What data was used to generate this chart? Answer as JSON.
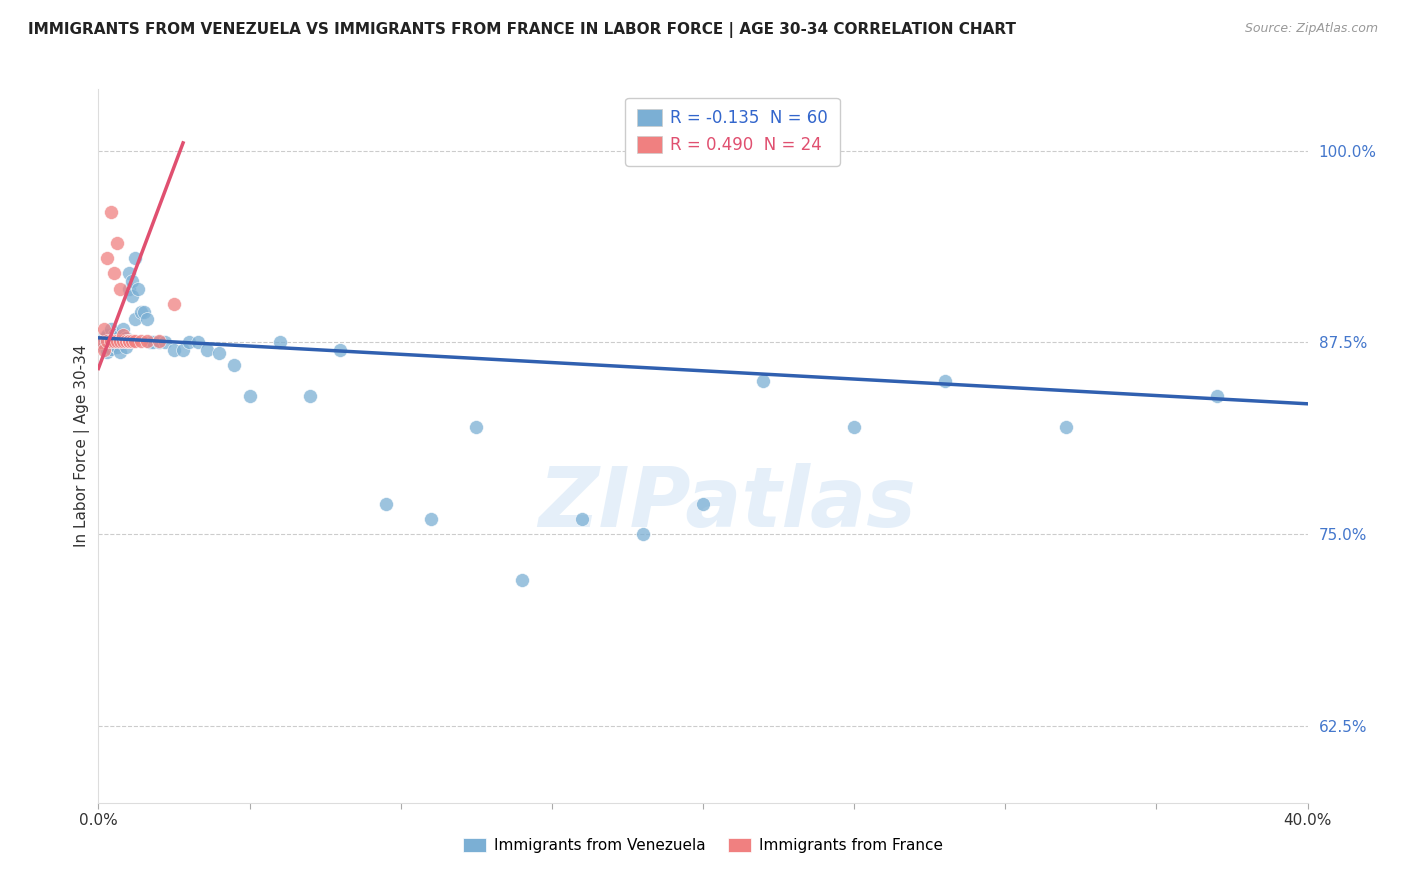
{
  "title": "IMMIGRANTS FROM VENEZUELA VS IMMIGRANTS FROM FRANCE IN LABOR FORCE | AGE 30-34 CORRELATION CHART",
  "source": "Source: ZipAtlas.com",
  "ylabel": "In Labor Force | Age 30-34",
  "yticks": [
    0.625,
    0.75,
    0.875,
    1.0
  ],
  "ytick_labels": [
    "62.5%",
    "75.0%",
    "87.5%",
    "100.0%"
  ],
  "xmin": 0.0,
  "xmax": 0.4,
  "ymin": 0.575,
  "ymax": 1.04,
  "legend_venezuela": "R = -0.135  N = 60",
  "legend_france": "R = 0.490  N = 24",
  "color_venezuela": "#7BAFD4",
  "color_france": "#F08080",
  "line_color_venezuela": "#3060B0",
  "line_color_france": "#E05070",
  "watermark": "ZIPatlas",
  "venezuela_x": [
    0.001,
    0.002,
    0.002,
    0.003,
    0.003,
    0.003,
    0.004,
    0.004,
    0.004,
    0.005,
    0.005,
    0.005,
    0.006,
    0.006,
    0.006,
    0.007,
    0.007,
    0.007,
    0.008,
    0.008,
    0.008,
    0.009,
    0.009,
    0.01,
    0.01,
    0.011,
    0.011,
    0.012,
    0.012,
    0.013,
    0.014,
    0.015,
    0.016,
    0.017,
    0.018,
    0.02,
    0.022,
    0.025,
    0.028,
    0.03,
    0.033,
    0.036,
    0.04,
    0.045,
    0.05,
    0.06,
    0.07,
    0.08,
    0.095,
    0.11,
    0.125,
    0.14,
    0.16,
    0.18,
    0.2,
    0.22,
    0.25,
    0.28,
    0.32,
    0.37
  ],
  "venezuela_y": [
    0.875,
    0.878,
    0.872,
    0.876,
    0.88,
    0.869,
    0.877,
    0.871,
    0.884,
    0.875,
    0.873,
    0.88,
    0.876,
    0.872,
    0.878,
    0.875,
    0.88,
    0.869,
    0.876,
    0.878,
    0.884,
    0.878,
    0.872,
    0.92,
    0.91,
    0.905,
    0.915,
    0.93,
    0.89,
    0.91,
    0.895,
    0.895,
    0.89,
    0.875,
    0.875,
    0.875,
    0.875,
    0.87,
    0.87,
    0.875,
    0.875,
    0.87,
    0.868,
    0.86,
    0.84,
    0.875,
    0.84,
    0.87,
    0.77,
    0.76,
    0.82,
    0.72,
    0.76,
    0.75,
    0.77,
    0.85,
    0.82,
    0.85,
    0.82,
    0.84
  ],
  "france_x": [
    0.001,
    0.002,
    0.002,
    0.003,
    0.003,
    0.004,
    0.004,
    0.005,
    0.005,
    0.006,
    0.006,
    0.007,
    0.007,
    0.008,
    0.008,
    0.009,
    0.01,
    0.01,
    0.011,
    0.012,
    0.014,
    0.016,
    0.02,
    0.025
  ],
  "france_y": [
    0.875,
    0.87,
    0.884,
    0.876,
    0.93,
    0.876,
    0.96,
    0.876,
    0.92,
    0.876,
    0.94,
    0.876,
    0.91,
    0.876,
    0.88,
    0.876,
    0.876,
    0.876,
    0.876,
    0.876,
    0.876,
    0.876,
    0.876,
    0.9
  ],
  "france_line_x0": 0.0,
  "france_line_x1": 0.028,
  "france_line_y0": 0.858,
  "france_line_y1": 1.005,
  "venezuela_line_x0": 0.0,
  "venezuela_line_x1": 0.4,
  "venezuela_line_y0": 0.878,
  "venezuela_line_y1": 0.835
}
